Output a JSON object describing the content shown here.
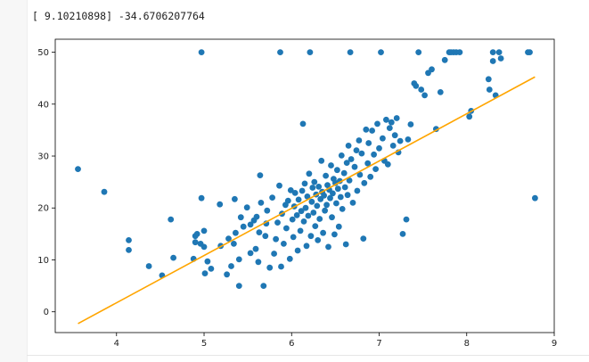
{
  "output": {
    "coef_text": "[ 9.10210898] -34.6706207764"
  },
  "colors": {
    "points": "#1f77b4",
    "fit_line": "#ffa500",
    "axes": "#000000"
  },
  "chart_data": {
    "type": "scatter",
    "title": "",
    "xlabel": "",
    "ylabel": "",
    "xlim": [
      3.3,
      9.0
    ],
    "ylim": [
      -4,
      52.5
    ],
    "xticks": [
      4,
      5,
      6,
      7,
      8,
      9
    ],
    "yticks": [
      0,
      10,
      20,
      30,
      40,
      50
    ],
    "grid": false,
    "fit_line": {
      "slope": 9.10210898,
      "intercept": -34.6706207764,
      "x_range": [
        3.56,
        8.78
      ]
    },
    "series": [
      {
        "points": [
          [
            3.56,
            27.5
          ],
          [
            3.86,
            23.1
          ],
          [
            4.14,
            13.8
          ],
          [
            4.14,
            11.9
          ],
          [
            4.37,
            8.8
          ],
          [
            4.52,
            7.0
          ],
          [
            4.62,
            17.8
          ],
          [
            4.65,
            10.4
          ],
          [
            4.88,
            10.2
          ],
          [
            4.9,
            13.4
          ],
          [
            4.9,
            14.6
          ],
          [
            4.92,
            15.0
          ],
          [
            4.96,
            13.1
          ],
          [
            4.97,
            50.0
          ],
          [
            4.97,
            21.9
          ],
          [
            5.0,
            15.6
          ],
          [
            5.0,
            12.5
          ],
          [
            5.01,
            7.4
          ],
          [
            5.04,
            9.7
          ],
          [
            5.08,
            8.3
          ],
          [
            5.19,
            12.7
          ],
          [
            5.18,
            20.7
          ],
          [
            5.26,
            7.2
          ],
          [
            5.28,
            14.1
          ],
          [
            5.31,
            8.8
          ],
          [
            5.34,
            13.1
          ],
          [
            5.35,
            21.7
          ],
          [
            5.36,
            15.2
          ],
          [
            5.4,
            5.0
          ],
          [
            5.4,
            10.1
          ],
          [
            5.42,
            18.2
          ],
          [
            5.45,
            16.4
          ],
          [
            5.49,
            20.1
          ],
          [
            5.53,
            11.3
          ],
          [
            5.53,
            16.8
          ],
          [
            5.57,
            17.6
          ],
          [
            5.59,
            12.1
          ],
          [
            5.6,
            18.3
          ],
          [
            5.62,
            9.6
          ],
          [
            5.63,
            15.3
          ],
          [
            5.64,
            26.3
          ],
          [
            5.65,
            21.0
          ],
          [
            5.68,
            5.0
          ],
          [
            5.7,
            14.6
          ],
          [
            5.71,
            17.0
          ],
          [
            5.72,
            19.5
          ],
          [
            5.75,
            8.5
          ],
          [
            5.78,
            22.0
          ],
          [
            5.8,
            11.2
          ],
          [
            5.82,
            14.0
          ],
          [
            5.84,
            17.2
          ],
          [
            5.86,
            24.3
          ],
          [
            5.87,
            50.0
          ],
          [
            5.88,
            8.7
          ],
          [
            5.89,
            18.9
          ],
          [
            5.91,
            13.1
          ],
          [
            5.93,
            20.6
          ],
          [
            5.94,
            16.1
          ],
          [
            5.96,
            21.4
          ],
          [
            5.98,
            10.2
          ],
          [
            5.99,
            23.4
          ],
          [
            6.01,
            17.8
          ],
          [
            6.02,
            14.4
          ],
          [
            6.03,
            20.3
          ],
          [
            6.04,
            22.9
          ],
          [
            6.06,
            18.6
          ],
          [
            6.07,
            11.8
          ],
          [
            6.08,
            21.6
          ],
          [
            6.1,
            15.6
          ],
          [
            6.11,
            19.4
          ],
          [
            6.12,
            23.3
          ],
          [
            6.13,
            36.2
          ],
          [
            6.14,
            17.4
          ],
          [
            6.15,
            24.7
          ],
          [
            6.16,
            20.0
          ],
          [
            6.17,
            12.7
          ],
          [
            6.18,
            22.2
          ],
          [
            6.19,
            18.5
          ],
          [
            6.2,
            26.6
          ],
          [
            6.21,
            50.0
          ],
          [
            6.22,
            14.6
          ],
          [
            6.23,
            21.2
          ],
          [
            6.24,
            23.9
          ],
          [
            6.25,
            19.1
          ],
          [
            6.26,
            25.0
          ],
          [
            6.27,
            16.5
          ],
          [
            6.28,
            22.6
          ],
          [
            6.29,
            20.4
          ],
          [
            6.3,
            13.8
          ],
          [
            6.31,
            24.1
          ],
          [
            6.32,
            17.9
          ],
          [
            6.33,
            21.7
          ],
          [
            6.34,
            29.1
          ],
          [
            6.35,
            23.1
          ],
          [
            6.36,
            15.2
          ],
          [
            6.37,
            22.4
          ],
          [
            6.38,
            19.5
          ],
          [
            6.39,
            26.2
          ],
          [
            6.4,
            20.6
          ],
          [
            6.41,
            24.4
          ],
          [
            6.42,
            12.5
          ],
          [
            6.43,
            23.5
          ],
          [
            6.44,
            21.9
          ],
          [
            6.45,
            28.2
          ],
          [
            6.46,
            18.2
          ],
          [
            6.47,
            22.8
          ],
          [
            6.48,
            25.6
          ],
          [
            6.49,
            14.9
          ],
          [
            6.5,
            24.8
          ],
          [
            6.51,
            20.9
          ],
          [
            6.52,
            27.3
          ],
          [
            6.53,
            23.7
          ],
          [
            6.54,
            16.4
          ],
          [
            6.55,
            25.2
          ],
          [
            6.56,
            22.1
          ],
          [
            6.57,
            30.1
          ],
          [
            6.58,
            19.8
          ],
          [
            6.6,
            26.7
          ],
          [
            6.61,
            24.0
          ],
          [
            6.62,
            13.0
          ],
          [
            6.63,
            28.7
          ],
          [
            6.64,
            22.5
          ],
          [
            6.65,
            32.0
          ],
          [
            6.66,
            25.3
          ],
          [
            6.67,
            50.0
          ],
          [
            6.68,
            29.4
          ],
          [
            6.7,
            21.0
          ],
          [
            6.72,
            27.9
          ],
          [
            6.74,
            31.1
          ],
          [
            6.75,
            23.3
          ],
          [
            6.77,
            33.0
          ],
          [
            6.78,
            26.4
          ],
          [
            6.8,
            30.5
          ],
          [
            6.82,
            14.1
          ],
          [
            6.83,
            24.8
          ],
          [
            6.85,
            35.1
          ],
          [
            6.87,
            28.6
          ],
          [
            6.88,
            32.5
          ],
          [
            6.9,
            26.0
          ],
          [
            6.92,
            34.9
          ],
          [
            6.94,
            30.3
          ],
          [
            6.96,
            27.5
          ],
          [
            6.98,
            36.2
          ],
          [
            7.0,
            31.5
          ],
          [
            7.02,
            50.0
          ],
          [
            7.04,
            33.4
          ],
          [
            7.06,
            29.1
          ],
          [
            7.08,
            37.0
          ],
          [
            7.1,
            28.4
          ],
          [
            7.12,
            35.4
          ],
          [
            7.14,
            36.5
          ],
          [
            7.16,
            32.0
          ],
          [
            7.18,
            34.0
          ],
          [
            7.2,
            37.3
          ],
          [
            7.22,
            30.7
          ],
          [
            7.24,
            32.9
          ],
          [
            7.27,
            15.0
          ],
          [
            7.31,
            17.8
          ],
          [
            7.33,
            33.2
          ],
          [
            7.36,
            36.1
          ],
          [
            7.4,
            44.0
          ],
          [
            7.42,
            43.5
          ],
          [
            7.45,
            50.0
          ],
          [
            7.48,
            42.8
          ],
          [
            7.52,
            41.7
          ],
          [
            7.56,
            46.0
          ],
          [
            7.6,
            46.7
          ],
          [
            7.65,
            35.2
          ],
          [
            7.7,
            42.3
          ],
          [
            7.75,
            48.5
          ],
          [
            7.8,
            50.0
          ],
          [
            7.82,
            50.0
          ],
          [
            7.85,
            50.0
          ],
          [
            7.88,
            50.0
          ],
          [
            7.92,
            50.0
          ],
          [
            8.03,
            37.6
          ],
          [
            8.05,
            38.7
          ],
          [
            8.25,
            44.8
          ],
          [
            8.26,
            42.8
          ],
          [
            8.3,
            48.3
          ],
          [
            8.3,
            50.0
          ],
          [
            8.33,
            41.7
          ],
          [
            8.37,
            50.0
          ],
          [
            8.39,
            48.8
          ],
          [
            8.7,
            50.0
          ],
          [
            8.72,
            50.0
          ],
          [
            8.78,
            21.9
          ]
        ]
      }
    ]
  }
}
